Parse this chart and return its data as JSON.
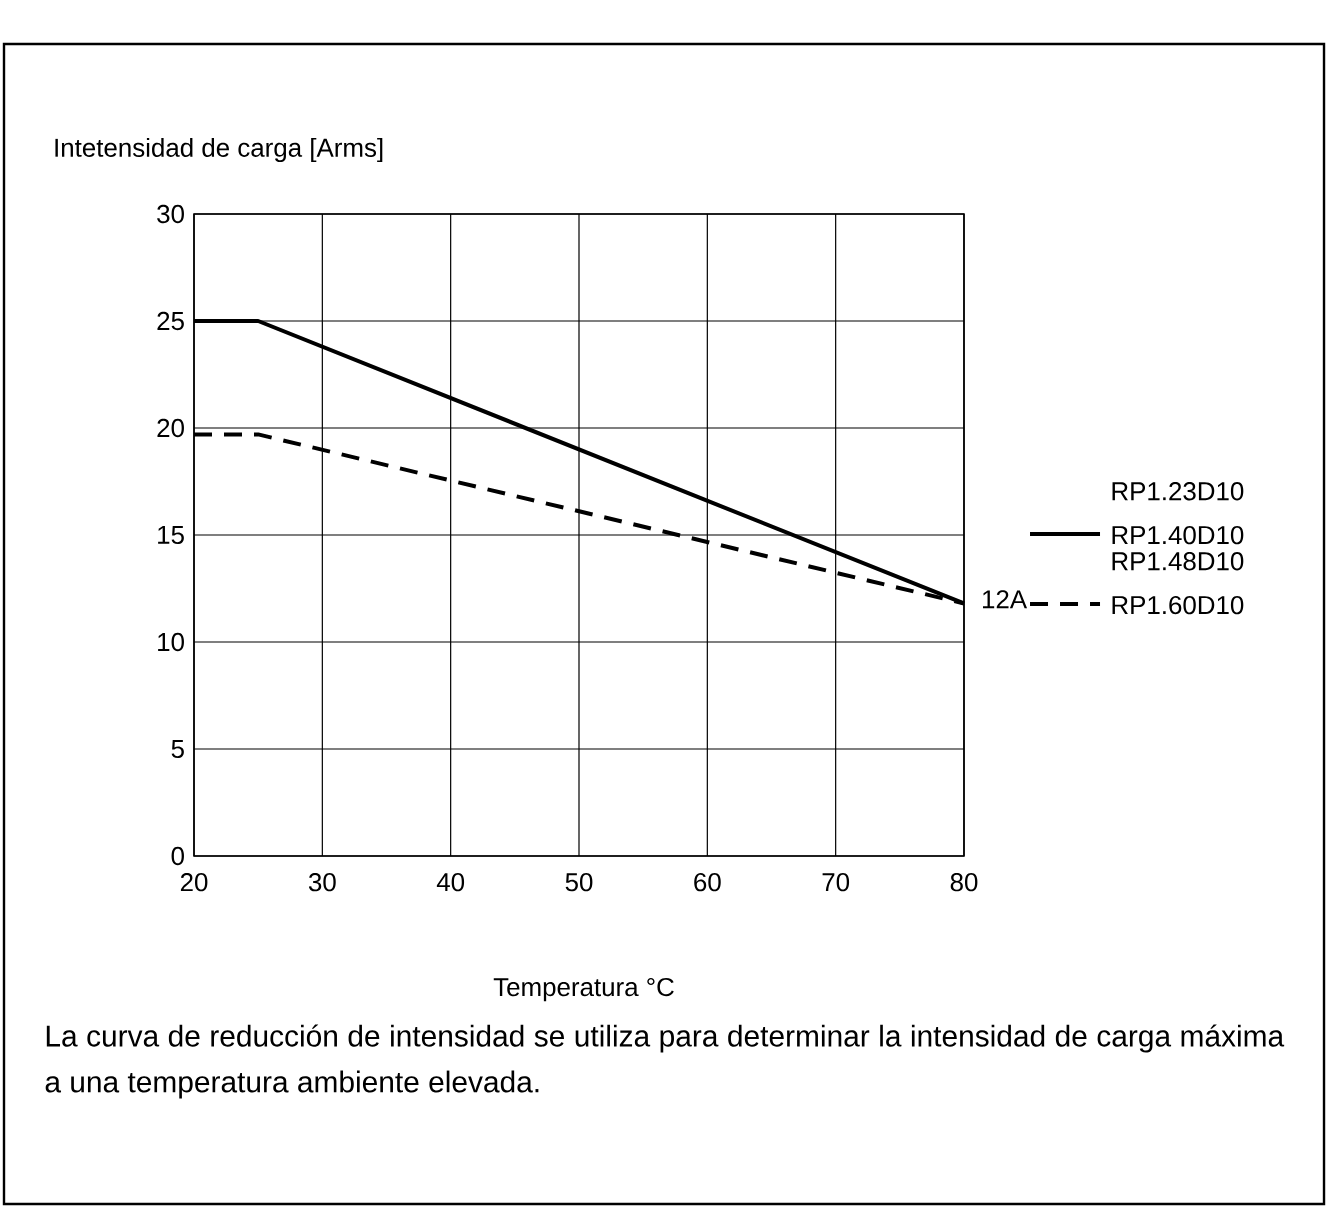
{
  "chart_data": {
    "type": "line",
    "ylabel": "Intetensidad de carga [Arms]",
    "xlabel": "Temperatura °C",
    "x": [
      20,
      25,
      80
    ],
    "series": [
      {
        "name": "RP1.23D10 RP1.40D10",
        "color": "#000000",
        "line_style": "solid",
        "values": [
          25,
          25,
          11.8
        ]
      },
      {
        "name": "RP1.48D10 RP1.60D10",
        "color": "#000000",
        "line_style": "dashed",
        "values": [
          19.7,
          19.7,
          11.8
        ]
      }
    ],
    "xlim": [
      20,
      80
    ],
    "xticks": [
      20,
      30,
      40,
      50,
      60,
      70,
      80
    ],
    "ylim": [
      0,
      30
    ],
    "yticks": [
      0,
      5,
      10,
      15,
      20,
      25,
      30
    ],
    "grid": true,
    "legend": "right",
    "marker": "none",
    "annotations": [
      {
        "text": "12A",
        "x": 80,
        "y": 12
      },
      "La curva de reducción de intensidad se utiliza para determinar la intensidad de carga máxima a una temperatura ambiente elevada."
    ]
  }
}
